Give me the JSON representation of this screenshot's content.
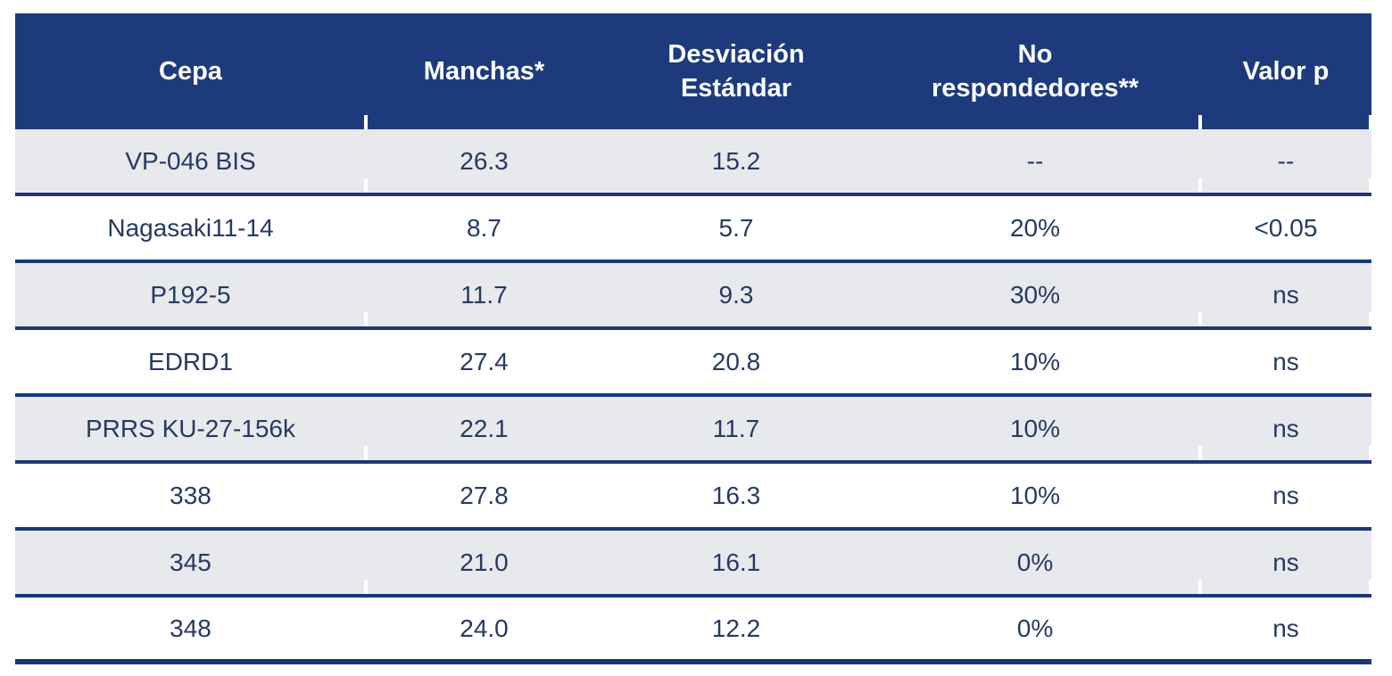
{
  "colors": {
    "header_bg": "#1d3b7c",
    "row_alt_bg": "#e8e9ed",
    "divider": "#1c3874",
    "body_text": "#263a64",
    "header_text": "#ffffff",
    "page_bg": "#ffffff"
  },
  "table": {
    "columns": [
      {
        "id": "cepa",
        "label": "Cepa"
      },
      {
        "id": "manchas",
        "label": "Manchas*"
      },
      {
        "id": "desviacion",
        "label": "Desviación\nEstándar"
      },
      {
        "id": "no_respondedores",
        "label": "No\nrespondedores**"
      },
      {
        "id": "valor_p",
        "label": "Valor p"
      }
    ],
    "rows": [
      {
        "cepa": "VP-046 BIS",
        "manchas": "26.3",
        "desviacion": "15.2",
        "no_respondedores": "--",
        "valor_p": "--"
      },
      {
        "cepa": "Nagasaki11-14",
        "manchas": "8.7",
        "desviacion": "5.7",
        "no_respondedores": "20%",
        "valor_p": "<0.05"
      },
      {
        "cepa": "P192-5",
        "manchas": "11.7",
        "desviacion": "9.3",
        "no_respondedores": "30%",
        "valor_p": "ns"
      },
      {
        "cepa": "EDRD1",
        "manchas": "27.4",
        "desviacion": "20.8",
        "no_respondedores": "10%",
        "valor_p": "ns"
      },
      {
        "cepa": "PRRS KU-27-156k",
        "manchas": "22.1",
        "desviacion": "11.7",
        "no_respondedores": "10%",
        "valor_p": "ns"
      },
      {
        "cepa": "338",
        "manchas": "27.8",
        "desviacion": "16.3",
        "no_respondedores": "10%",
        "valor_p": "ns"
      },
      {
        "cepa": "345",
        "manchas": "21.0",
        "desviacion": "16.1",
        "no_respondedores": "0%",
        "valor_p": "ns"
      },
      {
        "cepa": "348",
        "manchas": "24.0",
        "desviacion": "12.2",
        "no_respondedores": "0%",
        "valor_p": "ns"
      }
    ]
  }
}
